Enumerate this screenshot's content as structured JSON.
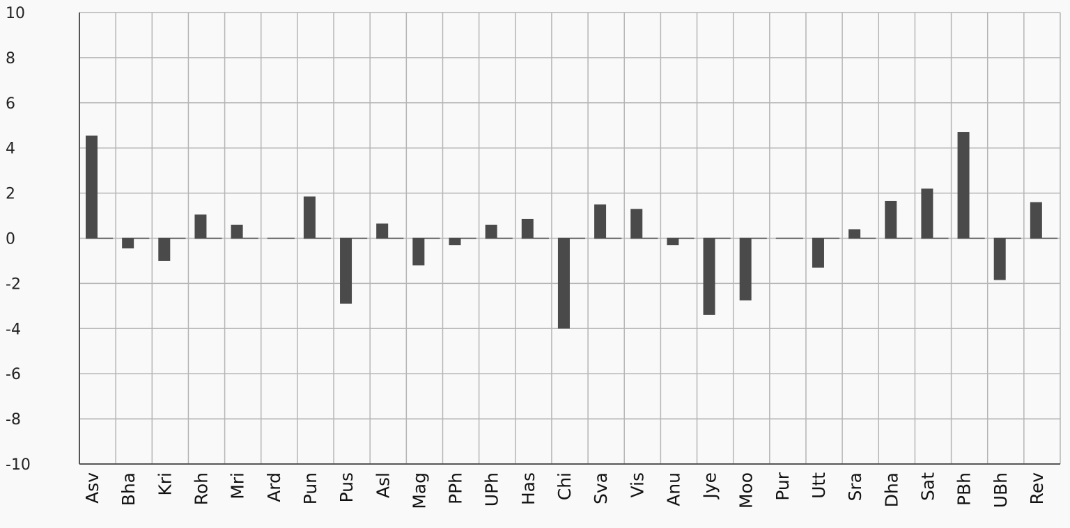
{
  "chart_data": {
    "type": "bar",
    "categories": [
      "Asv",
      "Bha",
      "Kri",
      "Roh",
      "Mri",
      "Ard",
      "Pun",
      "Pus",
      "Asl",
      "Mag",
      "PPh",
      "UPh",
      "Has",
      "Chi",
      "Sva",
      "Vis",
      "Anu",
      "Jye",
      "Moo",
      "Pur",
      "Utt",
      "Sra",
      "Dha",
      "Sat",
      "PBh",
      "UBh",
      "Rev"
    ],
    "values": [
      4.55,
      -0.45,
      -1.0,
      1.05,
      0.6,
      0.0,
      1.85,
      -2.9,
      0.65,
      -1.2,
      -0.3,
      0.6,
      0.85,
      -4.0,
      1.5,
      1.3,
      -0.3,
      -3.4,
      -2.75,
      0.0,
      -1.3,
      0.4,
      1.65,
      2.2,
      4.7,
      -1.85,
      1.6
    ],
    "ylim": [
      -10,
      10
    ],
    "yticks": [
      10,
      8,
      6,
      4,
      2,
      0,
      -2,
      -4,
      -6,
      -8,
      -10
    ],
    "yticks_labels": [
      "10",
      "8",
      "6",
      "4",
      "2",
      "0",
      "-2",
      "-4",
      "-6",
      "-8",
      "-10"
    ],
    "grid": true,
    "bar_color": "#4a4a4a",
    "grid_color": "#b5b5b5",
    "axis_color": "#555555"
  }
}
